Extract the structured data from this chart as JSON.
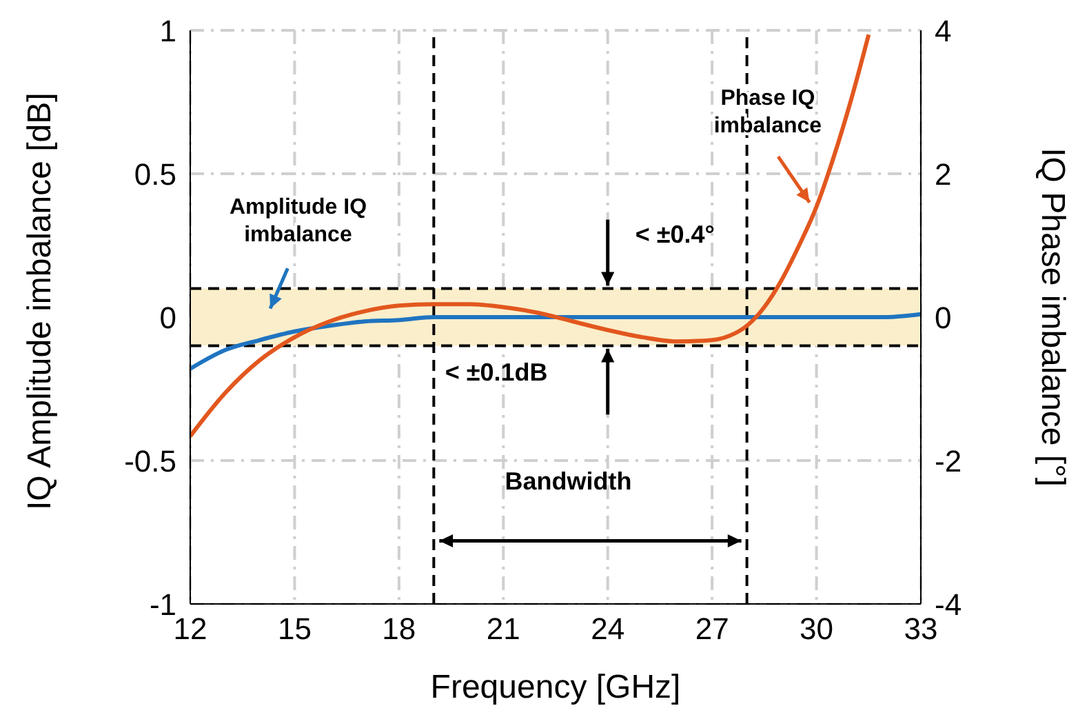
{
  "chart_data": {
    "type": "line",
    "xlabel": "Frequency [GHz]",
    "ylabel": "IQ Amplitude imbalance [dB]",
    "y2label": "IQ Phase imbalance [°]",
    "xlim": [
      12,
      33
    ],
    "xticks": [
      12,
      15,
      18,
      21,
      24,
      27,
      30,
      33
    ],
    "ylim": [
      -1,
      1
    ],
    "yticks": [
      -1,
      -0.5,
      0,
      0.5,
      1
    ],
    "y2lim": [
      -4,
      4
    ],
    "y2ticks": [
      -4,
      -2,
      0,
      2,
      4
    ],
    "grid": true,
    "legend": false,
    "marker": "none",
    "line_style": "solid",
    "series": [
      {
        "name": "Amplitude IQ imbalance",
        "color": "#1f74c0",
        "x": [
          12,
          13,
          14,
          15,
          16,
          17,
          18,
          19,
          21,
          24,
          27,
          30,
          32,
          33
        ],
        "values": [
          -0.18,
          -0.115,
          -0.08,
          -0.05,
          -0.03,
          -0.015,
          -0.01,
          0,
          0,
          0,
          0,
          0,
          0,
          0.01
        ]
      },
      {
        "name": "Phase IQ imbalance",
        "color": "#e2571e",
        "axis": "y2",
        "x": [
          12,
          13,
          14,
          15,
          16,
          17,
          18,
          19,
          20,
          21,
          22,
          23,
          24,
          25,
          26,
          27,
          27.5,
          28,
          28.5,
          29,
          29.5,
          30,
          30.5,
          31,
          31.5
        ],
        "values": [
          -1.66,
          -1.06,
          -0.6,
          -0.28,
          -0.06,
          0.08,
          0.16,
          0.18,
          0.18,
          0.14,
          0.06,
          -0.06,
          -0.18,
          -0.28,
          -0.34,
          -0.32,
          -0.26,
          -0.12,
          0.14,
          0.52,
          1.0,
          1.54,
          2.24,
          3.04,
          3.94
        ]
      }
    ],
    "bands": [
      {
        "axis": "y",
        "from": -0.1,
        "to": 0.1,
        "color": "#fbeecb"
      }
    ],
    "ref_lines": [
      {
        "axis": "y",
        "value": 0.1,
        "line_style": "dashed"
      },
      {
        "axis": "y",
        "value": -0.1,
        "line_style": "dashed"
      },
      {
        "axis": "x",
        "value": 19,
        "line_style": "dashed"
      },
      {
        "axis": "x",
        "value": 28,
        "line_style": "dashed"
      }
    ],
    "annotations": [
      {
        "text": "< ±0.4°",
        "x": 24,
        "y": 0.1
      },
      {
        "text": "< ±0.1dB",
        "x": 24,
        "y": -0.1
      },
      "Bandwidth"
    ]
  }
}
